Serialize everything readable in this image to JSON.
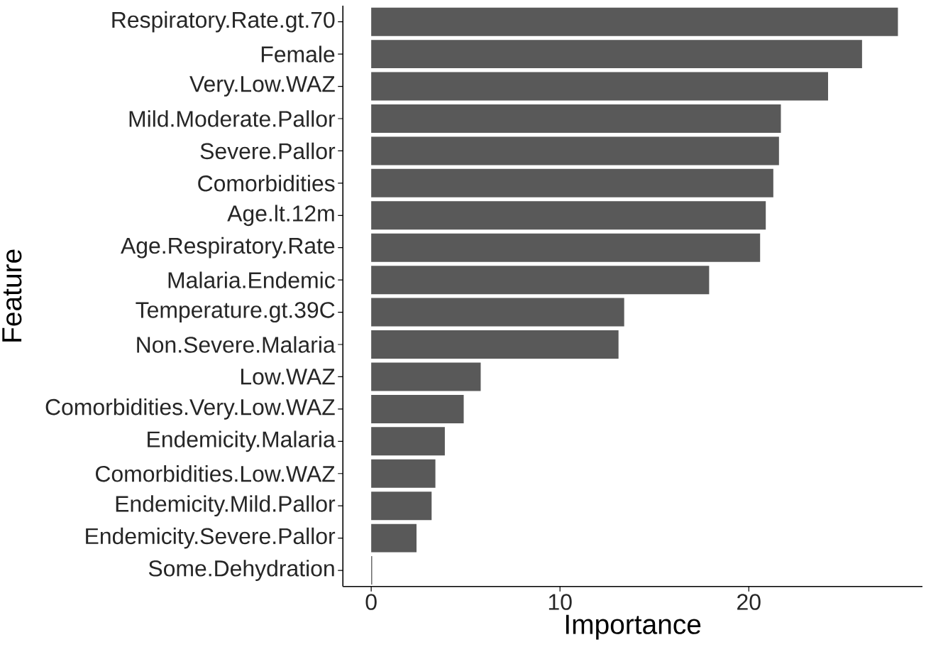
{
  "chart_data": {
    "type": "bar",
    "orientation": "horizontal",
    "xlabel": "Importance",
    "ylabel": "Feature",
    "categories": [
      "Respiratory.Rate.gt.70",
      "Female",
      "Very.Low.WAZ",
      "Mild.Moderate.Pallor",
      "Severe.Pallor",
      "Comorbidities",
      "Age.lt.12m",
      "Age.Respiratory.Rate",
      "Malaria.Endemic",
      "Temperature.gt.39C",
      "Non.Severe.Malaria",
      "Low.WAZ",
      "Comorbidities.Very.Low.WAZ",
      "Endemicity.Malaria",
      "Comorbidities.Low.WAZ",
      "Endemicity.Mild.Pallor",
      "Endemicity.Severe.Pallor",
      "Some.Dehydration"
    ],
    "values": [
      27.9,
      26.0,
      24.2,
      21.7,
      21.6,
      21.3,
      20.9,
      20.6,
      17.9,
      13.4,
      13.1,
      5.8,
      4.9,
      3.9,
      3.4,
      3.2,
      2.4,
      0.05
    ],
    "color": "#595959",
    "xlim": [
      -1.5,
      29.2
    ],
    "xticks": [
      0,
      10,
      20
    ]
  }
}
